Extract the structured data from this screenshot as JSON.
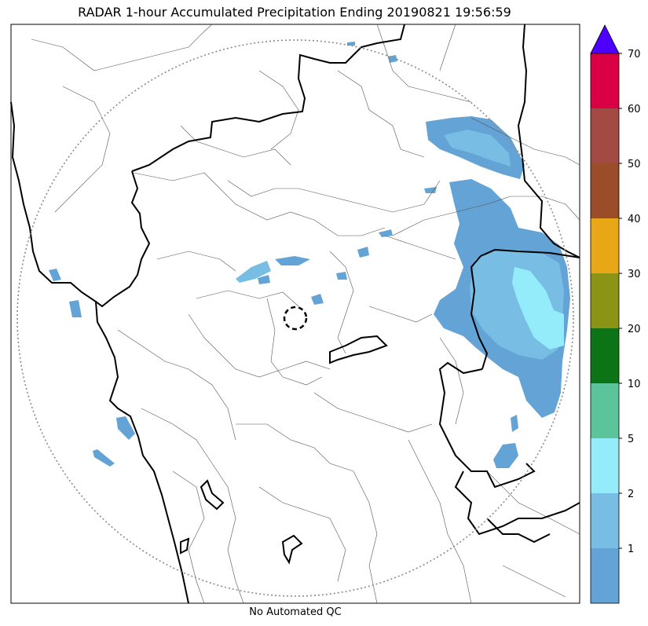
{
  "title": "RADAR 1-hour Accumulated Precipitation Ending 20190821 19:56:59",
  "footer": "No Automated QC",
  "colors": {
    "outline_state": "#000000",
    "outline_district": "#555555",
    "range_ring": "#8a8a8a"
  },
  "colorbar": {
    "extend": "max",
    "extend_color": "#4d00ff",
    "bins": [
      {
        "label": "1",
        "color": "#63a3d6"
      },
      {
        "label": "2",
        "color": "#78bde3"
      },
      {
        "label": "5",
        "color": "#94ecfb"
      },
      {
        "label": "10",
        "color": "#5cc49a"
      },
      {
        "label": "20",
        "color": "#0c7316"
      },
      {
        "label": "30",
        "color": "#8b9415"
      },
      {
        "label": "40",
        "color": "#e8a716"
      },
      {
        "label": "50",
        "color": "#9a4d28"
      },
      {
        "label": "60",
        "color": "#a34a44"
      },
      {
        "label": "70",
        "color": "#d90045"
      }
    ]
  }
}
